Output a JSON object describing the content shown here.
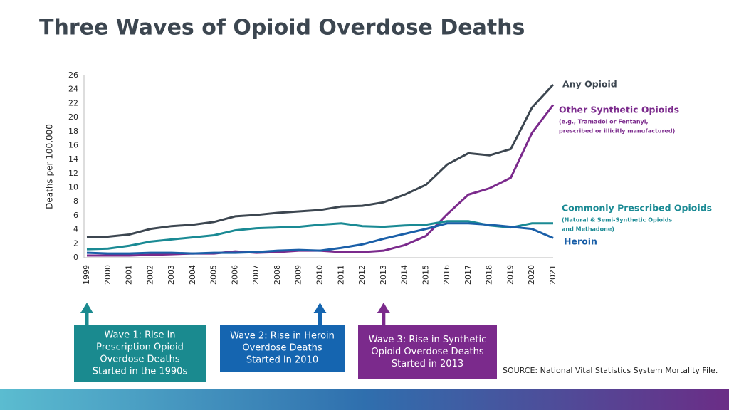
{
  "chart_data": {
    "type": "line",
    "title": "Three Waves of Opioid Overdose Deaths",
    "y_label": "Deaths per 100,000",
    "categories": [
      "1999",
      "2000",
      "2001",
      "2002",
      "2003",
      "2004",
      "2005",
      "2006",
      "2007",
      "2008",
      "2009",
      "2010",
      "2011",
      "2012",
      "2013",
      "2014",
      "2015",
      "2016",
      "2017",
      "2018",
      "2019",
      "2020",
      "2021"
    ],
    "ylim": [
      0,
      26
    ],
    "yticks": [
      0,
      2,
      4,
      6,
      8,
      10,
      12,
      14,
      16,
      18,
      20,
      22,
      24,
      26
    ],
    "series": [
      {
        "name": "Any Opioid",
        "color": "#3c4650",
        "notes": [],
        "values": [
          2.9,
          3.0,
          3.3,
          4.1,
          4.5,
          4.7,
          5.1,
          5.9,
          6.1,
          6.4,
          6.6,
          6.8,
          7.3,
          7.4,
          7.9,
          9.0,
          10.4,
          13.3,
          14.9,
          14.6,
          15.5,
          21.4,
          24.7
        ]
      },
      {
        "name": "Other Synthetic Opioids",
        "color": "#7b2a8c",
        "notes": [
          "(e.g., Tramadol or Fentanyl,",
          "prescribed or illicitly manufactured)"
        ],
        "values": [
          0.3,
          0.3,
          0.3,
          0.4,
          0.5,
          0.6,
          0.6,
          0.9,
          0.7,
          0.8,
          1.0,
          1.0,
          0.8,
          0.8,
          1.0,
          1.8,
          3.1,
          6.2,
          9.0,
          9.9,
          11.4,
          17.8,
          21.8
        ]
      },
      {
        "name": "Commonly Prescribed Opioids",
        "color": "#1a8a94",
        "notes": [
          "(Natural & Semi-Synthetic Opioids",
          "and Methadone)"
        ],
        "values": [
          1.2,
          1.3,
          1.7,
          2.3,
          2.6,
          2.9,
          3.2,
          3.9,
          4.2,
          4.3,
          4.4,
          4.7,
          4.9,
          4.5,
          4.4,
          4.6,
          4.7,
          5.2,
          5.2,
          4.6,
          4.3,
          4.9,
          4.9
        ]
      },
      {
        "name": "Heroin",
        "color": "#1a5fa8",
        "notes": [],
        "values": [
          0.7,
          0.6,
          0.6,
          0.7,
          0.7,
          0.6,
          0.7,
          0.7,
          0.8,
          1.0,
          1.1,
          1.0,
          1.4,
          1.9,
          2.7,
          3.4,
          4.1,
          4.9,
          4.9,
          4.7,
          4.4,
          4.1,
          2.8
        ]
      }
    ],
    "annotations": [
      {
        "category": "1999",
        "color": "#1a8a8f",
        "lines": [
          "Wave 1: Rise in",
          "Prescription Opioid",
          "Overdose Deaths",
          "Started in the 1990s"
        ]
      },
      {
        "category": "2010",
        "color": "#1565b0",
        "lines": [
          "Wave 2: Rise in Heroin",
          "Overdose Deaths",
          "Started in 2010"
        ]
      },
      {
        "category": "2013",
        "color": "#7b2a8c",
        "lines": [
          "Wave 3: Rise in Synthetic",
          "Opioid Overdose Deaths",
          "Started in 2013"
        ]
      }
    ],
    "source": "SOURCE: National Vital Statistics System Mortality File."
  }
}
